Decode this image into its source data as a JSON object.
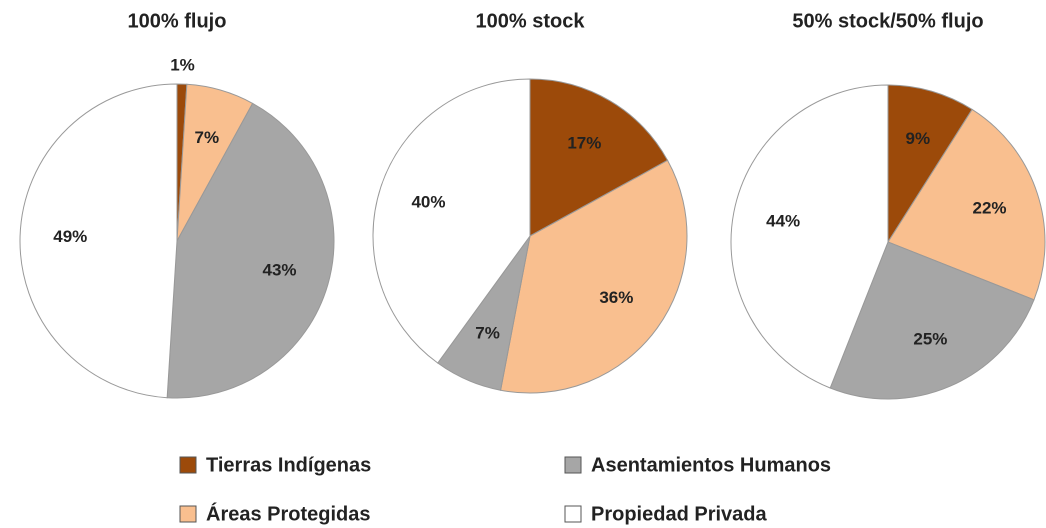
{
  "chart_data": [
    {
      "type": "pie",
      "title": "100% flujo",
      "categories": [
        "Tierras Indígenas",
        "Áreas Protegidas",
        "Asentamientos Humanos",
        "Propiedad Privada"
      ],
      "values": [
        1,
        7,
        43,
        49
      ],
      "value_labels": [
        "1%",
        "7%",
        "43%",
        "49%"
      ],
      "colors": [
        "#9c4a0a",
        "#f9bf8f",
        "#a6a6a6",
        "#ffffff"
      ]
    },
    {
      "type": "pie",
      "title": "100% stock",
      "categories": [
        "Tierras Indígenas",
        "Áreas Protegidas",
        "Asentamientos Humanos",
        "Propiedad Privada"
      ],
      "values": [
        17,
        36,
        7,
        40
      ],
      "value_labels": [
        "17%",
        "36%",
        "7%",
        "40%"
      ],
      "colors": [
        "#9c4a0a",
        "#f9bf8f",
        "#a6a6a6",
        "#ffffff"
      ]
    },
    {
      "type": "pie",
      "title": "50% stock/50% flujo",
      "categories": [
        "Tierras Indígenas",
        "Áreas Protegidas",
        "Asentamientos Humanos",
        "Propiedad Privada"
      ],
      "values": [
        9,
        22,
        25,
        44
      ],
      "value_labels": [
        "9%",
        "22%",
        "25%",
        "44%"
      ],
      "colors": [
        "#9c4a0a",
        "#f9bf8f",
        "#a6a6a6",
        "#ffffff"
      ]
    }
  ]
}
